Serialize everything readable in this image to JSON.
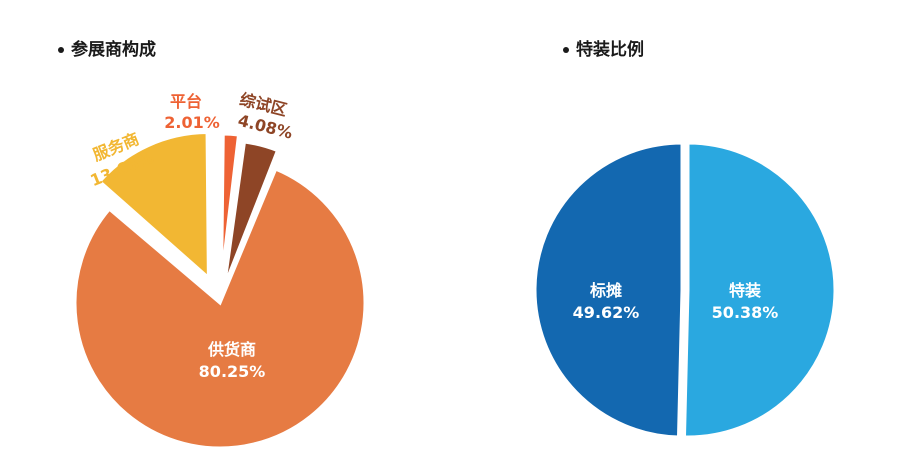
{
  "chart_data": [
    {
      "type": "pie",
      "title": "参展商构成",
      "slices": [
        {
          "name": "供货商",
          "value": 80.25,
          "label": "80.25%",
          "color": "#E67B43"
        },
        {
          "name": "服务商",
          "value": 13.66,
          "label": "13.66%",
          "color": "#F2B733"
        },
        {
          "name": "平台",
          "value": 2.01,
          "label": "2.01%",
          "color": "#EE6234"
        },
        {
          "name": "综试区",
          "value": 4.08,
          "label": "4.08%",
          "color": "#8E4526"
        }
      ]
    },
    {
      "type": "pie",
      "title": "特装比例",
      "slices": [
        {
          "name": "特装",
          "value": 50.38,
          "label": "50.38%",
          "color": "#2AA8E0"
        },
        {
          "name": "标摊",
          "value": 49.62,
          "label": "49.62%",
          "color": "#1368B0"
        }
      ]
    }
  ]
}
